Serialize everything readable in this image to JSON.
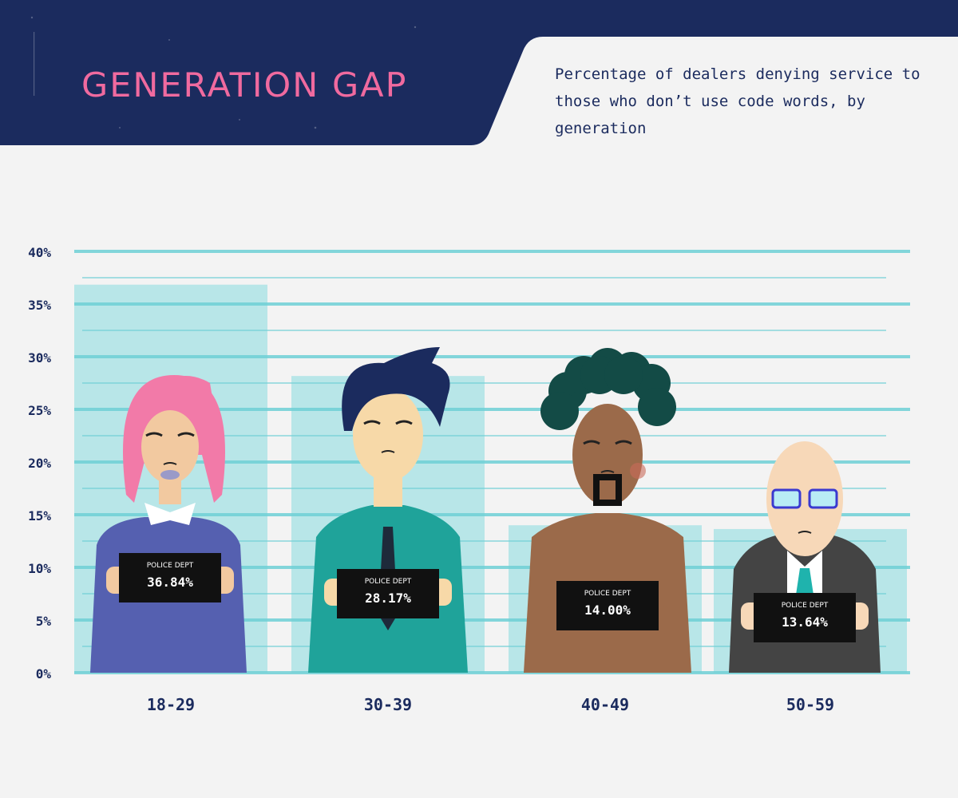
{
  "header": {
    "title": "GENERATION GAP",
    "subtitle": "Percentage of dealers denying service to those who don’t use code words, by generation"
  },
  "colors": {
    "navy": "#1b2b5e",
    "pink": "#f06a9f",
    "bar": "#b8e6e8",
    "gridline": "#6fd0d6",
    "background": "#f3f3f3",
    "placard": "#111111"
  },
  "placard_label": "POLICE DEPT",
  "chart_data": {
    "type": "bar",
    "title": "GENERATION GAP",
    "subtitle": "Percentage of dealers denying service to those who don’t use code words, by generation",
    "categories": [
      "18-29",
      "30-39",
      "40-49",
      "50-59"
    ],
    "values": [
      36.84,
      28.17,
      14.0,
      13.64
    ],
    "value_labels": [
      "36.84%",
      "28.17%",
      "14.00%",
      "13.64%"
    ],
    "ylim": [
      0,
      40
    ],
    "yticks": [
      0,
      5,
      10,
      15,
      20,
      25,
      30,
      35,
      40
    ],
    "ytick_labels": [
      "0%",
      "5%",
      "10%",
      "15%",
      "20%",
      "25%",
      "30%",
      "35%",
      "40%"
    ],
    "xlabel": "",
    "ylabel": "",
    "grid": true,
    "legend": "none",
    "characters": [
      "pink-haired-woman",
      "man-in-teal-shirt",
      "shirtless-man-with-goatee",
      "bald-man-in-suit"
    ]
  }
}
